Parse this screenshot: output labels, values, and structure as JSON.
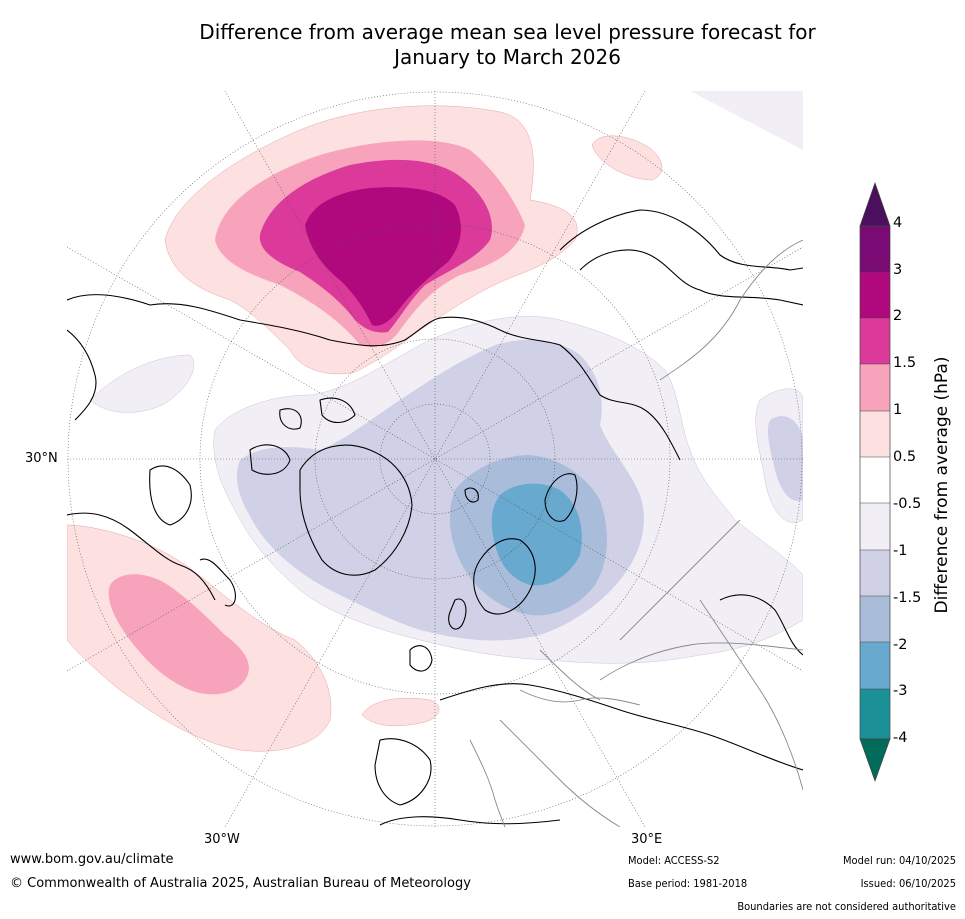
{
  "title_line1": "Difference from average mean sea level pressure forecast for",
  "title_line2": "January to March 2026",
  "colorbar": {
    "title": "Difference from average (hPa)",
    "ticks": [
      "4",
      "3",
      "2",
      "1.5",
      "1",
      "0.5",
      "-0.5",
      "-1",
      "-1.5",
      "-2",
      "-3",
      "-4"
    ],
    "bins": [
      {
        "range": "> 4",
        "color": "#4b0f5e"
      },
      {
        "range": "3 to 4",
        "color": "#7a0a74"
      },
      {
        "range": "2 to 3",
        "color": "#b0087d"
      },
      {
        "range": "1.5 to 2",
        "color": "#dc3a9a"
      },
      {
        "range": "1 to 1.5",
        "color": "#f7a3bb"
      },
      {
        "range": "0.5 to 1",
        "color": "#fde0e0"
      },
      {
        "range": "-0.5 to 0.5",
        "color": "#ffffff"
      },
      {
        "range": "-1 to -0.5",
        "color": "#f1eef5"
      },
      {
        "range": "-1.5 to -1",
        "color": "#d0d1e6"
      },
      {
        "range": "-2 to -1.5",
        "color": "#a9bcda"
      },
      {
        "range": "-3 to -2",
        "color": "#67a9cf"
      },
      {
        "range": "-4 to -3",
        "color": "#1b9096"
      },
      {
        "range": "< -4",
        "color": "#016c59"
      }
    ]
  },
  "axis_labels": {
    "lat": "30°N",
    "lon_w": "30°W",
    "lon_e": "30°E"
  },
  "footer": {
    "url": "www.bom.gov.au/climate",
    "copyright": "© Commonwealth of Australia 2025, Australian Bureau of Meteorology",
    "model": "Model: ACCESS-S2",
    "base_period": "Base period: 1981-2018",
    "model_run": "Model run: 04/10/2025",
    "issued": "Issued: 06/10/2025",
    "disclaimer": "Boundaries are not considered authoritative"
  }
}
